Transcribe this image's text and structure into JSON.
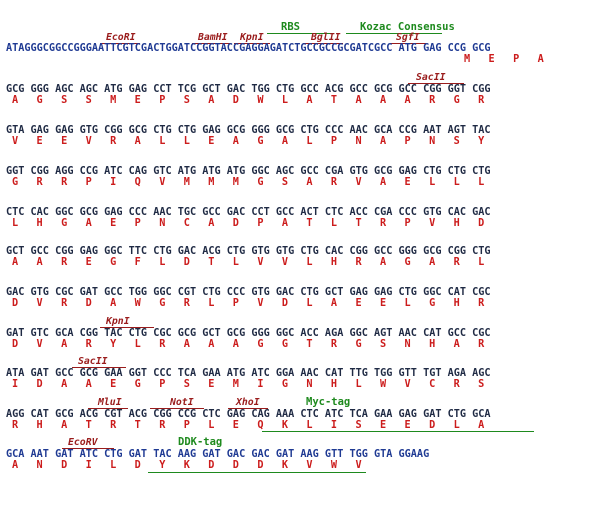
{
  "rows": [
    {
      "seq": "ATAGGGCGGCCGGGAATTCGTCGACTGGATCCGGTACCGAGGAGATCTGCCGCCGCGATCGCC ATG GAG CCG GCG",
      "aa": "M   E   P   A",
      "seq_class": "blue"
    },
    {
      "seq": "GCG GGG AGC AGC ATG GAG CCT TCG GCT GAC TGG CTG GCC ACG GCC GCG GCC CGG GGT CGG",
      "aa": "A   G   S   S   M   E   P   S   A   D   W   L   A   T   A   A   A   R   G   R"
    },
    {
      "seq": "GTA GAG GAG GTG CGG GCG CTG CTG GAG GCG GGG GCG CTG CCC AAC GCA CCG AAT AGT TAC",
      "aa": "V   E   E   V   R   A   L   L   E   A   G   A   L   P   N   A   P   N   S   Y"
    },
    {
      "seq": "GGT CGG AGG CCG ATC CAG GTC ATG ATG ATG GGC AGC GCC CGA GTG GCG GAG CTG CTG CTG",
      "aa": "G   R   R   P   I   Q   V   M   M   M   G   S   A   R   V   A   E   L   L   L"
    },
    {
      "seq": "CTC CAC GGC GCG GAG CCC AAC TGC GCC GAC CCT GCC ACT CTC ACC CGA CCC GTG CAC GAC",
      "aa": "L   H   G   A   E   P   N   C   A   D   P   A   T   L   T   R   P   V   H   D"
    },
    {
      "seq": "GCT GCC CGG GAG GGC TTC CTG GAC ACG CTG GTG GTG CTG CAC CGG GCC GGG GCG CGG CTG",
      "aa": "A   A   R   E   G   F   L   D   T   L   V   V   L   H   R   A   G   A   R   L"
    },
    {
      "seq": "GAC GTG CGC GAT GCC TGG GGC CGT CTG CCC GTG GAC CTG GCT GAG GAG CTG GGC CAT CGC",
      "aa": "D   V   R   D   A   W   G   R   L   P   V   D   L   A   E   E   L   G   H   R"
    },
    {
      "seq": "GAT GTC GCA CGG TAC CTG CGC GCG GCT GCG GGG GGC ACC AGA GGC AGT AAC CAT GCC CGC",
      "aa": "D   V   A   R   Y   L   R   A   A   A   G   G   T   R   G   S   N   H   A   R"
    },
    {
      "seq": "ATA GAT GCC GCG GAA GGT CCC TCA GAA ATG ATC GGA AAC CAT TTG TGG GTT TGT AGA AGC",
      "aa": "I   D   A   A   E   G   P   S   E   M   I   G   N   H   L   W   V   C   R   S"
    },
    {
      "seq": "AGG CAT GCG ACG CGT ACG CGG CCG CTC GAG CAG AAA CTC ATC TCA GAA GAG GAT CTG GCA",
      "aa": "R   H   A   T   R   T   R   P   L   E   Q   K   L   I   S   E   E   D   L   A"
    },
    {
      "seq": "GCA AAT GAT ATC CTG GAT TAC AAG GAT GAC GAC GAT AAG GTT TGG GTA GGAAG",
      "aa": "A   N   D   I   L   D   Y   K   D   D   D   K   V   W   V",
      "seq_class": "blue"
    }
  ],
  "sites": {
    "ecori": "EcoRI",
    "bamhi": "BamHI",
    "kpni1": "KpnI",
    "bglii": "BglII",
    "sgfi": "SgfI",
    "sacii1": "SacII",
    "kpni2": "KpnI",
    "sacii2": "SacII",
    "mlui": "MluI",
    "noti": "NotI",
    "xhoi": "XhoI",
    "ecorv": "EcoRV"
  },
  "tags": {
    "rbs": "RBS",
    "kozac": "Kozac Consensus",
    "myc": "Myc-tag",
    "ddk": "DDK-tag"
  }
}
